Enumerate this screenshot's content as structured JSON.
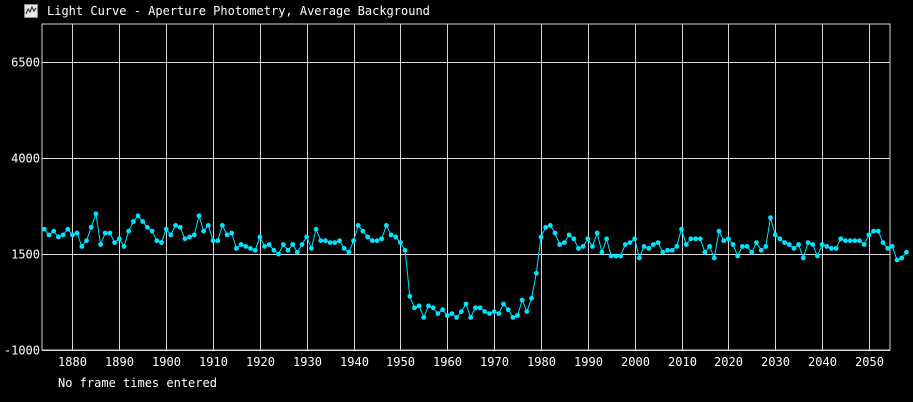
{
  "window": {
    "title": "Light Curve - Aperture Photometry, Average Background",
    "icon": "light-curve-app-icon"
  },
  "footer": {
    "status": "No frame times entered"
  },
  "colors": {
    "background": "#000000",
    "grid": "#d8d8d8",
    "series": "#00e5ff",
    "text": "#ffffff"
  },
  "chart_data": {
    "type": "line",
    "title": "",
    "xlabel": "",
    "ylabel": "",
    "xlim": [
      1873.5,
      2054.5
    ],
    "ylim": [
      -1000,
      7500
    ],
    "xticks": [
      1880,
      1890,
      1900,
      1910,
      1920,
      1930,
      1940,
      1950,
      1960,
      1970,
      1980,
      1990,
      2000,
      2010,
      2020,
      2030,
      2040,
      2050
    ],
    "yticks": [
      -1000,
      1500,
      4000,
      6500
    ],
    "ytick_labels": [
      "-1000",
      "1500",
      "4000",
      "6500"
    ],
    "grid": true,
    "markers": "circle",
    "series": [
      {
        "x_start": 1874,
        "x_step": 1,
        "values": [
          2150,
          2000,
          2100,
          1950,
          2000,
          2150,
          2000,
          2050,
          1700,
          1850,
          2200,
          2550,
          1750,
          2050,
          2050,
          1800,
          1900,
          1700,
          2100,
          2350,
          2500,
          2350,
          2200,
          2100,
          1850,
          1800,
          2150,
          2000,
          2250,
          2200,
          1900,
          1950,
          2000,
          2500,
          2100,
          2250,
          1850,
          1850,
          2250,
          2000,
          2050,
          1650,
          1750,
          1700,
          1650,
          1600,
          1950,
          1700,
          1750,
          1600,
          1500,
          1750,
          1600,
          1750,
          1550,
          1750,
          1950,
          1650,
          2150,
          1850,
          1850,
          1800,
          1800,
          1850,
          1650,
          1550,
          1850,
          2250,
          2100,
          1950,
          1850,
          1850,
          1900,
          2250,
          2000,
          1950,
          1800,
          1600,
          400,
          100,
          150,
          -150,
          150,
          100,
          -50,
          50,
          -100,
          -50,
          -150,
          0,
          200,
          -150,
          100,
          100,
          0,
          -50,
          0,
          -50,
          200,
          50,
          -150,
          -100,
          300,
          0,
          350,
          1000,
          1950,
          2200,
          2250,
          2050,
          1750,
          1800,
          2000,
          1900,
          1650,
          1700,
          1900,
          1700,
          2050,
          1550,
          1900,
          1450,
          1450,
          1450,
          1750,
          1800,
          1900,
          1400,
          1700,
          1650,
          1750,
          1800,
          1550,
          1600,
          1600,
          1700,
          2150,
          1750,
          1900,
          1900,
          1900,
          1550,
          1700,
          1400,
          2100,
          1850,
          1900,
          1750,
          1450,
          1700,
          1700,
          1550,
          1800,
          1600,
          1700,
          2450,
          2000,
          1900,
          1800,
          1750,
          1650,
          1750,
          1400,
          1800,
          1750,
          1450,
          1750,
          1700,
          1650,
          1650,
          1900,
          1850,
          1850,
          1850,
          1850,
          1750,
          2000,
          2100,
          2100,
          1800,
          1650,
          1700,
          1350,
          1400,
          1550
        ]
      }
    ]
  }
}
